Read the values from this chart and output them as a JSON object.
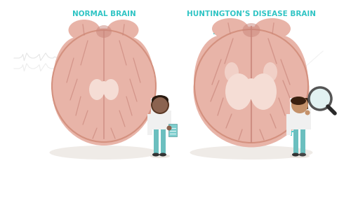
{
  "bg_color": "#ffffff",
  "title_normal": "NORMAL BRAIN",
  "title_disease": "HUNTINGTON’S DISEASE BRAIN",
  "title_color": "#2ec4c4",
  "title_fontsize": 7.5,
  "brain_color": "#e8b4a8",
  "brain_outline": "#d4917f",
  "brain_detail": "#c9857a",
  "brain_inner": "#f0c8be",
  "ventricle_color": "#f5ddd5",
  "plus_color": "#2ec4c4",
  "ecg_color": "#cccccc",
  "hex_color": "#d8d8d8",
  "doctor_skin": "#8B6350",
  "doctor_skin2": "#c4916a",
  "coat_color": "#f0f0f0",
  "scrub_color": "#6bbfbf",
  "clipboard_color": "#7ecece",
  "magnifier_handle": "#2a2a2a",
  "magnifier_glass": "#d0eaea",
  "shadow_color": "#e0d8d0"
}
